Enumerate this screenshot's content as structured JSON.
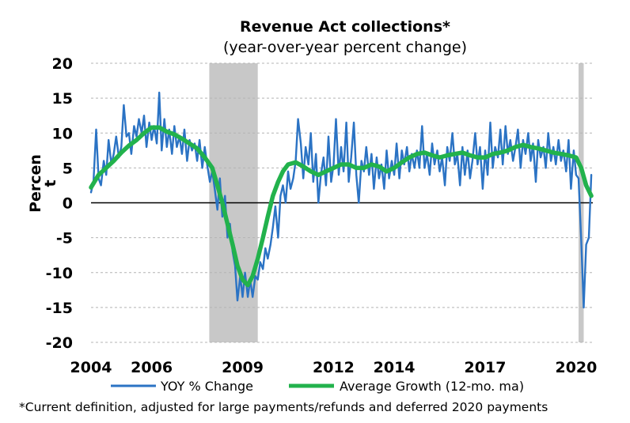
{
  "chart_data": {
    "type": "line",
    "title": "Revenue Act collections*",
    "subtitle": "(year-over-year percent change)",
    "ylabel_line1": "Percen",
    "ylabel_line2": "t",
    "ylim": [
      -20,
      20
    ],
    "yticks": [
      20,
      15,
      10,
      5,
      0,
      -5,
      -10,
      -15,
      -20
    ],
    "x_tick_labels": [
      "2004",
      "2006",
      "2009",
      "2012",
      "2014",
      "2017",
      "2020"
    ],
    "x_tick_values": [
      2004.0,
      2006.0,
      2009.0,
      2012.0,
      2014.0,
      2017.0,
      2020.0
    ],
    "xlim": [
      2004.0,
      2020.55
    ],
    "grid": "horizontal dashed",
    "legend_position": "bottom",
    "recessions": [
      {
        "start": 2007.9,
        "end": 2009.5
      },
      {
        "start": 2020.08,
        "end": 2020.25
      }
    ],
    "series": [
      {
        "name": "YOY % Change",
        "color": "#2b73c4",
        "points": [
          [
            2004.0,
            1.5
          ],
          [
            2004.08,
            3.0
          ],
          [
            2004.17,
            10.5
          ],
          [
            2004.25,
            3.5
          ],
          [
            2004.33,
            2.5
          ],
          [
            2004.42,
            6.0
          ],
          [
            2004.5,
            4.0
          ],
          [
            2004.58,
            9.0
          ],
          [
            2004.67,
            5.5
          ],
          [
            2004.75,
            7.0
          ],
          [
            2004.83,
            9.5
          ],
          [
            2004.92,
            6.5
          ],
          [
            2005.0,
            8.0
          ],
          [
            2005.08,
            14.0
          ],
          [
            2005.17,
            9.5
          ],
          [
            2005.25,
            10.0
          ],
          [
            2005.33,
            7.0
          ],
          [
            2005.42,
            11.0
          ],
          [
            2005.5,
            9.5
          ],
          [
            2005.58,
            12.0
          ],
          [
            2005.67,
            10.0
          ],
          [
            2005.75,
            12.5
          ],
          [
            2005.83,
            8.0
          ],
          [
            2005.92,
            11.5
          ],
          [
            2006.0,
            9.0
          ],
          [
            2006.08,
            11.0
          ],
          [
            2006.17,
            8.5
          ],
          [
            2006.25,
            15.8
          ],
          [
            2006.33,
            7.5
          ],
          [
            2006.42,
            12.0
          ],
          [
            2006.5,
            8.0
          ],
          [
            2006.58,
            10.5
          ],
          [
            2006.67,
            7.0
          ],
          [
            2006.75,
            11.0
          ],
          [
            2006.83,
            8.0
          ],
          [
            2006.92,
            9.5
          ],
          [
            2007.0,
            7.0
          ],
          [
            2007.08,
            10.5
          ],
          [
            2007.17,
            6.0
          ],
          [
            2007.25,
            9.0
          ],
          [
            2007.33,
            7.5
          ],
          [
            2007.42,
            8.5
          ],
          [
            2007.5,
            6.0
          ],
          [
            2007.58,
            9.0
          ],
          [
            2007.67,
            5.0
          ],
          [
            2007.75,
            8.0
          ],
          [
            2007.83,
            5.5
          ],
          [
            2007.92,
            3.0
          ],
          [
            2008.0,
            4.5
          ],
          [
            2008.08,
            2.0
          ],
          [
            2008.17,
            -1.0
          ],
          [
            2008.25,
            3.5
          ],
          [
            2008.33,
            -2.0
          ],
          [
            2008.42,
            1.0
          ],
          [
            2008.5,
            -5.0
          ],
          [
            2008.58,
            -3.0
          ],
          [
            2008.67,
            -7.0
          ],
          [
            2008.75,
            -9.0
          ],
          [
            2008.83,
            -14.0
          ],
          [
            2008.92,
            -10.5
          ],
          [
            2009.0,
            -13.5
          ],
          [
            2009.08,
            -10.0
          ],
          [
            2009.17,
            -13.5
          ],
          [
            2009.25,
            -11.0
          ],
          [
            2009.33,
            -13.5
          ],
          [
            2009.42,
            -10.5
          ],
          [
            2009.5,
            -11.0
          ],
          [
            2009.58,
            -8.5
          ],
          [
            2009.67,
            -9.5
          ],
          [
            2009.75,
            -6.5
          ],
          [
            2009.83,
            -8.0
          ],
          [
            2009.92,
            -6.0
          ],
          [
            2010.0,
            -3.5
          ],
          [
            2010.08,
            -0.5
          ],
          [
            2010.17,
            -5.0
          ],
          [
            2010.25,
            1.0
          ],
          [
            2010.33,
            2.5
          ],
          [
            2010.42,
            0.0
          ],
          [
            2010.5,
            4.5
          ],
          [
            2010.58,
            2.0
          ],
          [
            2010.67,
            3.5
          ],
          [
            2010.75,
            6.0
          ],
          [
            2010.83,
            12.0
          ],
          [
            2010.92,
            8.5
          ],
          [
            2011.0,
            3.5
          ],
          [
            2011.08,
            8.0
          ],
          [
            2011.17,
            5.5
          ],
          [
            2011.25,
            10.0
          ],
          [
            2011.33,
            3.0
          ],
          [
            2011.42,
            7.0
          ],
          [
            2011.5,
            0.0
          ],
          [
            2011.58,
            4.0
          ],
          [
            2011.67,
            6.5
          ],
          [
            2011.75,
            2.5
          ],
          [
            2011.83,
            9.5
          ],
          [
            2011.92,
            3.0
          ],
          [
            2012.0,
            5.5
          ],
          [
            2012.08,
            12.0
          ],
          [
            2012.17,
            4.0
          ],
          [
            2012.25,
            8.0
          ],
          [
            2012.33,
            4.5
          ],
          [
            2012.42,
            11.5
          ],
          [
            2012.5,
            3.0
          ],
          [
            2012.58,
            6.5
          ],
          [
            2012.67,
            11.5
          ],
          [
            2012.75,
            4.0
          ],
          [
            2012.83,
            0.0
          ],
          [
            2012.92,
            6.0
          ],
          [
            2013.0,
            4.5
          ],
          [
            2013.08,
            8.0
          ],
          [
            2013.17,
            4.0
          ],
          [
            2013.25,
            7.0
          ],
          [
            2013.33,
            2.0
          ],
          [
            2013.42,
            6.5
          ],
          [
            2013.5,
            3.5
          ],
          [
            2013.58,
            5.5
          ],
          [
            2013.67,
            2.0
          ],
          [
            2013.75,
            7.5
          ],
          [
            2013.83,
            3.5
          ],
          [
            2013.92,
            6.0
          ],
          [
            2014.0,
            4.0
          ],
          [
            2014.08,
            8.5
          ],
          [
            2014.17,
            3.5
          ],
          [
            2014.25,
            7.5
          ],
          [
            2014.33,
            5.5
          ],
          [
            2014.42,
            8.0
          ],
          [
            2014.5,
            4.5
          ],
          [
            2014.58,
            7.0
          ],
          [
            2014.67,
            5.0
          ],
          [
            2014.75,
            7.5
          ],
          [
            2014.83,
            5.0
          ],
          [
            2014.92,
            11.0
          ],
          [
            2015.0,
            5.0
          ],
          [
            2015.08,
            7.0
          ],
          [
            2015.17,
            4.0
          ],
          [
            2015.25,
            8.5
          ],
          [
            2015.33,
            5.5
          ],
          [
            2015.42,
            7.5
          ],
          [
            2015.5,
            4.5
          ],
          [
            2015.58,
            6.5
          ],
          [
            2015.67,
            2.5
          ],
          [
            2015.75,
            8.0
          ],
          [
            2015.83,
            6.0
          ],
          [
            2015.92,
            10.0
          ],
          [
            2016.0,
            5.5
          ],
          [
            2016.08,
            7.0
          ],
          [
            2016.17,
            2.5
          ],
          [
            2016.25,
            8.0
          ],
          [
            2016.33,
            4.0
          ],
          [
            2016.42,
            7.5
          ],
          [
            2016.5,
            3.5
          ],
          [
            2016.58,
            6.0
          ],
          [
            2016.67,
            10.0
          ],
          [
            2016.75,
            5.5
          ],
          [
            2016.83,
            8.0
          ],
          [
            2016.92,
            2.0
          ],
          [
            2017.0,
            7.5
          ],
          [
            2017.08,
            4.0
          ],
          [
            2017.17,
            11.5
          ],
          [
            2017.25,
            5.0
          ],
          [
            2017.33,
            8.0
          ],
          [
            2017.42,
            6.5
          ],
          [
            2017.5,
            10.5
          ],
          [
            2017.58,
            5.5
          ],
          [
            2017.67,
            11.0
          ],
          [
            2017.75,
            7.0
          ],
          [
            2017.83,
            9.0
          ],
          [
            2017.92,
            6.0
          ],
          [
            2018.0,
            8.0
          ],
          [
            2018.08,
            10.5
          ],
          [
            2018.17,
            5.0
          ],
          [
            2018.25,
            9.0
          ],
          [
            2018.33,
            7.0
          ],
          [
            2018.42,
            10.0
          ],
          [
            2018.5,
            6.0
          ],
          [
            2018.58,
            8.5
          ],
          [
            2018.67,
            3.0
          ],
          [
            2018.75,
            9.0
          ],
          [
            2018.83,
            6.5
          ],
          [
            2018.92,
            8.0
          ],
          [
            2019.0,
            5.0
          ],
          [
            2019.08,
            10.0
          ],
          [
            2019.17,
            6.0
          ],
          [
            2019.25,
            8.0
          ],
          [
            2019.33,
            5.5
          ],
          [
            2019.42,
            9.0
          ],
          [
            2019.5,
            6.0
          ],
          [
            2019.58,
            7.5
          ],
          [
            2019.67,
            4.5
          ],
          [
            2019.75,
            9.0
          ],
          [
            2019.83,
            2.0
          ],
          [
            2019.92,
            7.5
          ],
          [
            2020.0,
            4.0
          ],
          [
            2020.08,
            3.5
          ],
          [
            2020.17,
            -5.5
          ],
          [
            2020.25,
            -15.0
          ],
          [
            2020.33,
            -6.0
          ],
          [
            2020.42,
            -5.0
          ],
          [
            2020.5,
            4.0
          ]
        ]
      },
      {
        "name": "Average Growth (12-mo. ma)",
        "color": "#22b24c",
        "points": [
          [
            2004.0,
            2.2
          ],
          [
            2004.25,
            4.0
          ],
          [
            2004.5,
            5.0
          ],
          [
            2004.75,
            6.0
          ],
          [
            2005.0,
            7.2
          ],
          [
            2005.25,
            8.2
          ],
          [
            2005.5,
            9.0
          ],
          [
            2005.75,
            10.0
          ],
          [
            2006.0,
            10.8
          ],
          [
            2006.25,
            10.8
          ],
          [
            2006.5,
            10.2
          ],
          [
            2006.75,
            9.8
          ],
          [
            2007.0,
            9.2
          ],
          [
            2007.25,
            8.5
          ],
          [
            2007.5,
            7.8
          ],
          [
            2007.75,
            6.5
          ],
          [
            2008.0,
            5.0
          ],
          [
            2008.17,
            2.5
          ],
          [
            2008.33,
            0.0
          ],
          [
            2008.5,
            -3.0
          ],
          [
            2008.67,
            -6.0
          ],
          [
            2008.83,
            -9.0
          ],
          [
            2009.0,
            -11.0
          ],
          [
            2009.17,
            -11.8
          ],
          [
            2009.33,
            -10.5
          ],
          [
            2009.5,
            -8.0
          ],
          [
            2009.67,
            -5.0
          ],
          [
            2009.83,
            -2.0
          ],
          [
            2010.0,
            1.0
          ],
          [
            2010.17,
            3.0
          ],
          [
            2010.33,
            4.5
          ],
          [
            2010.5,
            5.5
          ],
          [
            2010.75,
            5.8
          ],
          [
            2011.0,
            5.2
          ],
          [
            2011.25,
            4.5
          ],
          [
            2011.5,
            4.0
          ],
          [
            2011.75,
            4.5
          ],
          [
            2012.0,
            5.0
          ],
          [
            2012.25,
            5.5
          ],
          [
            2012.5,
            5.5
          ],
          [
            2012.75,
            5.0
          ],
          [
            2013.0,
            5.0
          ],
          [
            2013.25,
            5.5
          ],
          [
            2013.5,
            5.2
          ],
          [
            2013.75,
            4.5
          ],
          [
            2014.0,
            5.0
          ],
          [
            2014.25,
            5.8
          ],
          [
            2014.5,
            6.5
          ],
          [
            2014.75,
            7.0
          ],
          [
            2015.0,
            7.2
          ],
          [
            2015.25,
            6.8
          ],
          [
            2015.5,
            6.5
          ],
          [
            2015.75,
            6.8
          ],
          [
            2016.0,
            7.0
          ],
          [
            2016.25,
            7.2
          ],
          [
            2016.5,
            6.8
          ],
          [
            2016.75,
            6.5
          ],
          [
            2017.0,
            6.5
          ],
          [
            2017.25,
            7.0
          ],
          [
            2017.5,
            7.2
          ],
          [
            2017.75,
            7.5
          ],
          [
            2018.0,
            8.0
          ],
          [
            2018.25,
            8.3
          ],
          [
            2018.5,
            8.0
          ],
          [
            2018.75,
            7.8
          ],
          [
            2019.0,
            7.5
          ],
          [
            2019.25,
            7.2
          ],
          [
            2019.5,
            7.0
          ],
          [
            2019.75,
            6.8
          ],
          [
            2020.0,
            6.5
          ],
          [
            2020.17,
            5.0
          ],
          [
            2020.33,
            2.5
          ],
          [
            2020.5,
            1.0
          ]
        ]
      }
    ],
    "legend": [
      {
        "label": "YOY % Change",
        "color": "#2b73c4"
      },
      {
        "label": "Average Growth (12-mo. ma)",
        "color": "#22b24c"
      }
    ],
    "footnote": "*Current definition, adjusted for large payments/refunds and deferred 2020 payments"
  }
}
